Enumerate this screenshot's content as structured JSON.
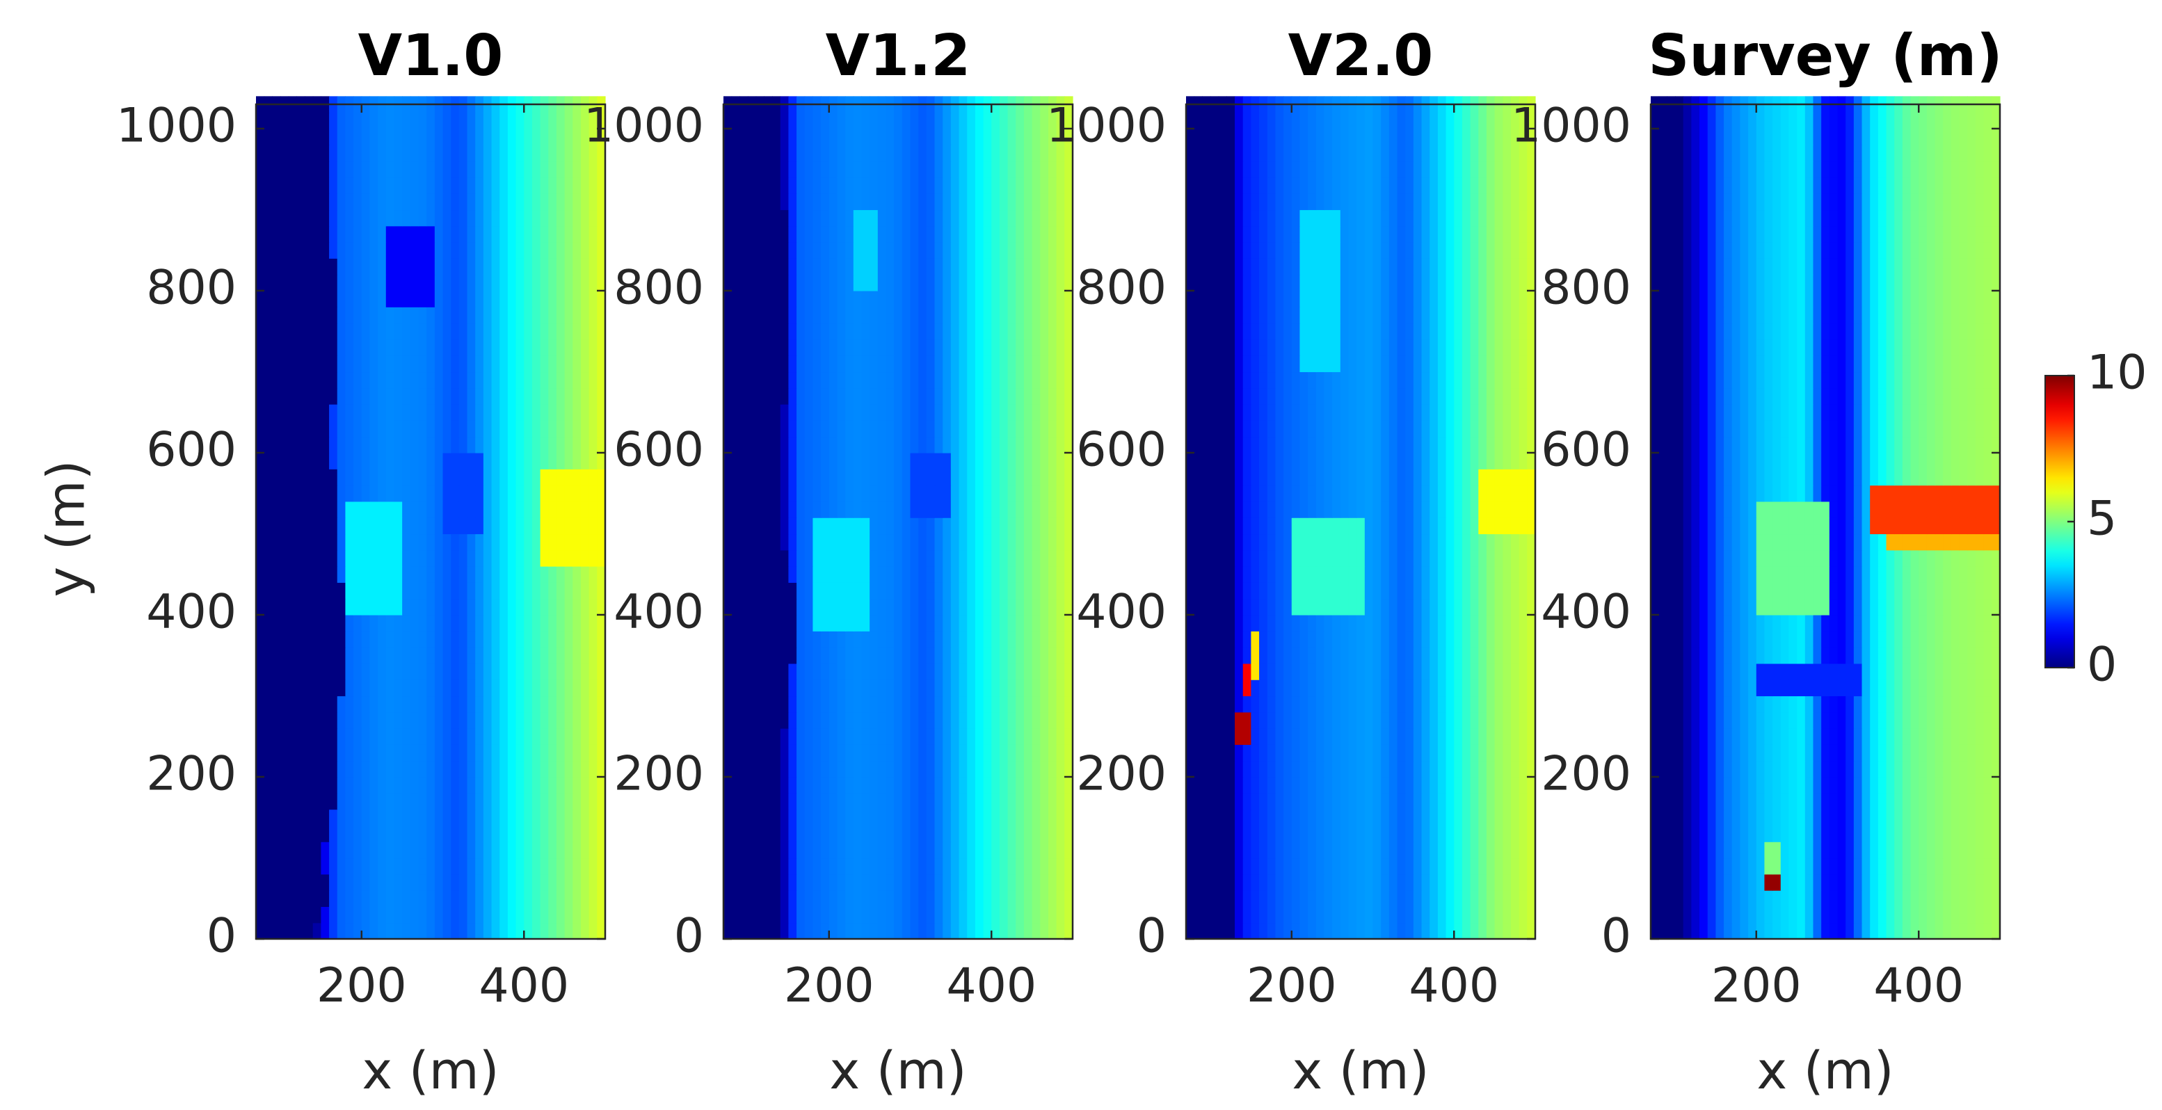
{
  "chart_data": {
    "type": "heatmap",
    "colormap": "jet",
    "colorbar": {
      "min": 0,
      "max": 10,
      "ticks": [
        "0",
        "5",
        "10"
      ]
    },
    "x_range": [
      70,
      500
    ],
    "y_range": [
      0,
      1030
    ],
    "xticks": [
      200,
      400
    ],
    "yticks": [
      0,
      200,
      400,
      600,
      800,
      1000
    ],
    "xlabel": "x (m)",
    "ylabel": "y (m)",
    "panels": [
      {
        "title": "V1.0",
        "shore_x": [
          [
            0,
            140
          ],
          [
            60,
            160
          ],
          [
            100,
            150
          ],
          [
            150,
            165
          ],
          [
            250,
            170
          ],
          [
            350,
            180
          ],
          [
            450,
            175
          ],
          [
            550,
            170
          ],
          [
            600,
            160
          ],
          [
            650,
            165
          ],
          [
            750,
            170
          ],
          [
            850,
            165
          ],
          [
            950,
            165
          ],
          [
            1030,
            165
          ]
        ],
        "profile": [
          [
            70,
            0
          ],
          [
            140,
            0
          ],
          [
            170,
            2.2
          ],
          [
            230,
            2.6
          ],
          [
            280,
            2.5
          ],
          [
            320,
            2.0
          ],
          [
            380,
            3.6
          ],
          [
            440,
            4.8
          ],
          [
            500,
            6.0
          ]
        ],
        "anomalies": [
          {
            "x": [
              230,
              290
            ],
            "y": [
              780,
              880
            ],
            "v": 1.2
          },
          {
            "x": [
              185,
              250
            ],
            "y": [
              400,
              530
            ],
            "v": 3.6
          },
          {
            "x": [
              300,
              345
            ],
            "y": [
              500,
              600
            ],
            "v": 1.9
          },
          {
            "x": [
              420,
              500
            ],
            "y": [
              470,
              580
            ],
            "v": 6.2
          }
        ]
      },
      {
        "title": "V1.2",
        "shore_x": [
          [
            0,
            140
          ],
          [
            150,
            145
          ],
          [
            200,
            135
          ],
          [
            300,
            150
          ],
          [
            400,
            165
          ],
          [
            500,
            140
          ],
          [
            600,
            135
          ],
          [
            700,
            150
          ],
          [
            800,
            150
          ],
          [
            900,
            145
          ],
          [
            1030,
            145
          ]
        ],
        "profile": [
          [
            70,
            0
          ],
          [
            140,
            0
          ],
          [
            160,
            2.2
          ],
          [
            230,
            2.6
          ],
          [
            280,
            2.5
          ],
          [
            320,
            2.1
          ],
          [
            380,
            3.6
          ],
          [
            440,
            4.8
          ],
          [
            500,
            5.8
          ]
        ],
        "anomalies": [
          {
            "x": [
              180,
              250
            ],
            "y": [
              390,
              520
            ],
            "v": 3.5
          },
          {
            "x": [
              300,
              345
            ],
            "y": [
              520,
              600
            ],
            "v": 1.9
          },
          {
            "x": [
              230,
              260
            ],
            "y": [
              800,
              900
            ],
            "v": 3.3
          }
        ]
      },
      {
        "title": "V2.0",
        "shore_x": [
          [
            0,
            125
          ],
          [
            200,
            125
          ],
          [
            400,
            125
          ],
          [
            600,
            130
          ],
          [
            800,
            125
          ],
          [
            1030,
            125
          ]
        ],
        "profile": [
          [
            70,
            0
          ],
          [
            125,
            0
          ],
          [
            140,
            1.5
          ],
          [
            190,
            2.2
          ],
          [
            250,
            2.6
          ],
          [
            300,
            2.8
          ],
          [
            340,
            2.2
          ],
          [
            400,
            3.8
          ],
          [
            450,
            5.2
          ],
          [
            500,
            5.8
          ]
        ],
        "anomalies": [
          {
            "x": [
              200,
              290
            ],
            "y": [
              400,
              520
            ],
            "v": 4.2
          },
          {
            "x": [
              210,
              260
            ],
            "y": [
              700,
              900
            ],
            "v": 3.4
          },
          {
            "x": [
              430,
              500
            ],
            "y": [
              500,
              580
            ],
            "v": 6.2
          }
        ],
        "spikes": [
          {
            "x": [
              135,
              145
            ],
            "y": [
              250,
              270
            ],
            "v": 9.5
          },
          {
            "x": [
              145,
              152
            ],
            "y": [
              300,
              330
            ],
            "v": 8.8
          },
          {
            "x": [
              148,
              158
            ],
            "y": [
              330,
              370
            ],
            "v": 6.5
          }
        ]
      },
      {
        "title": "Survey (m)",
        "shore_x": [
          [
            0,
            105
          ],
          [
            1030,
            105
          ]
        ],
        "profile": [
          [
            70,
            0
          ],
          [
            105,
            0
          ],
          [
            130,
            1.0
          ],
          [
            160,
            2.4
          ],
          [
            210,
            3.2
          ],
          [
            260,
            3.6
          ],
          [
            285,
            1.4
          ],
          [
            310,
            1.2
          ],
          [
            340,
            3.4
          ],
          [
            390,
            4.8
          ],
          [
            440,
            5.2
          ],
          [
            500,
            5.4
          ]
        ],
        "anomalies": [
          {
            "x": [
              200,
              290
            ],
            "y": [
              400,
              530
            ],
            "v": 4.8
          },
          {
            "x": [
              200,
              330
            ],
            "y": [
              300,
              340
            ],
            "v": 1.6
          }
        ],
        "spikes": [
          {
            "x": [
              345,
              500
            ],
            "y": [
              505,
              555
            ],
            "v": 8.2
          },
          {
            "x": [
              365,
              500
            ],
            "y": [
              480,
              505
            ],
            "v": 7.0
          },
          {
            "x": [
              215,
              225
            ],
            "y": [
              60,
              90
            ],
            "v": 9.8
          },
          {
            "x": [
              210,
              230
            ],
            "y": [
              90,
              110
            ],
            "v": 5.0
          }
        ]
      }
    ]
  }
}
